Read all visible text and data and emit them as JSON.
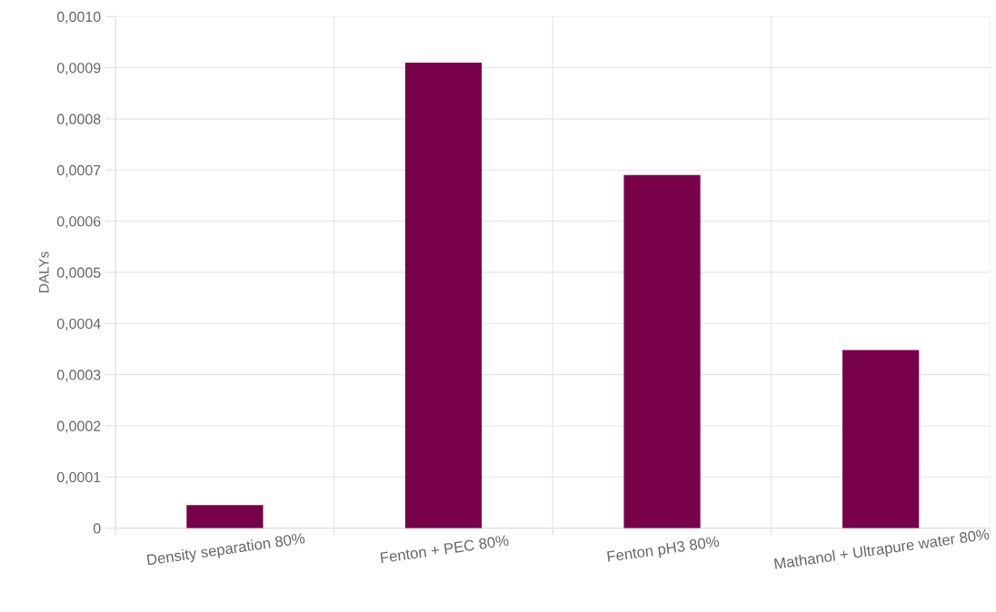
{
  "chart_data": {
    "type": "bar",
    "ylabel": "DALYs",
    "categories": [
      "Density separation 80%",
      "Fenton + PEC 80%",
      "Fenton pH3 80%",
      "Mathanol + Ultrapure water 80%"
    ],
    "values": [
      4.5e-05,
      0.00091,
      0.00069,
      0.000348
    ],
    "color": "#780048",
    "ylim": [
      0,
      0.001
    ],
    "yticks": [
      {
        "value": 0,
        "label": "0"
      },
      {
        "value": 0.0001,
        "label": "0,0001"
      },
      {
        "value": 0.0002,
        "label": "0,0002"
      },
      {
        "value": 0.0003,
        "label": "0,0003"
      },
      {
        "value": 0.0004,
        "label": "0,0004"
      },
      {
        "value": 0.0005,
        "label": "0,0005"
      },
      {
        "value": 0.0006,
        "label": "0,0006"
      },
      {
        "value": 0.0007,
        "label": "0,0007"
      },
      {
        "value": 0.0008,
        "label": "0,0008"
      },
      {
        "value": 0.0009,
        "label": "0,0009"
      },
      {
        "value": 0.001,
        "label": "0,0010"
      }
    ],
    "grid": true
  }
}
